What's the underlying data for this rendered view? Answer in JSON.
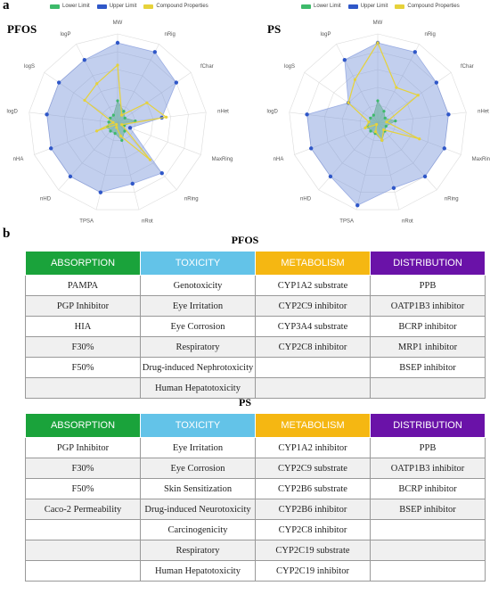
{
  "labels": {
    "panel_a": "a",
    "panel_b": "b"
  },
  "legend": {
    "items": [
      {
        "label": "Lower Limit",
        "color": "#3dba6a"
      },
      {
        "label": "Upper Limit",
        "color": "#2f57c8"
      },
      {
        "label": "Compound Properties",
        "color": "#e6d23a"
      }
    ]
  },
  "chart_data": [
    {
      "type": "radar",
      "title": "PFOS",
      "axes": [
        "MW",
        "nRig",
        "fChar",
        "nHet",
        "MaxRing",
        "nRing",
        "nRot",
        "TPSA",
        "nHD",
        "nHA",
        "logD",
        "logS",
        "logP"
      ],
      "series": [
        {
          "name": "Upper Limit",
          "values": [
            0.9,
            0.9,
            0.8,
            0.5,
            0.15,
            0.75,
            0.7,
            0.8,
            0.8,
            0.8,
            0.8,
            0.8,
            0.8
          ]
        },
        {
          "name": "Lower Limit",
          "values": [
            0.25,
            0.15,
            0.1,
            0.2,
            0.08,
            0.12,
            0.2,
            0.12,
            0.12,
            0.12,
            0.1,
            0.1,
            0.1
          ]
        },
        {
          "name": "Compound Properties",
          "values": [
            0.65,
            0.1,
            0.4,
            0.55,
            0.05,
            0.55,
            0.15,
            0.05,
            0.02,
            0.25,
            0.05,
            0.45,
            0.5
          ]
        }
      ]
    },
    {
      "type": "radar",
      "title": "PS",
      "axes": [
        "MW",
        "nRig",
        "fChar",
        "nHet",
        "MaxRing",
        "nRing",
        "nRot",
        "TPSA",
        "nHD",
        "nHA",
        "logD",
        "logS",
        "logP"
      ],
      "series": [
        {
          "name": "Upper Limit",
          "values": [
            0.9,
            0.9,
            0.8,
            0.8,
            0.8,
            0.8,
            0.75,
            0.95,
            0.8,
            0.8,
            0.8,
            0.4,
            0.8
          ]
        },
        {
          "name": "Lower Limit",
          "values": [
            0.25,
            0.15,
            0.1,
            0.2,
            0.1,
            0.12,
            0.2,
            0.12,
            0.12,
            0.12,
            0.1,
            0.1,
            0.1
          ]
        },
        {
          "name": "Compound Properties",
          "values": [
            0.9,
            0.45,
            0.55,
            0.1,
            0.5,
            0.1,
            0.2,
            0.1,
            0.02,
            0.15,
            0.1,
            0.4,
            0.55
          ]
        }
      ]
    }
  ],
  "tables": [
    {
      "title": "PFOS",
      "headers": [
        "ABSORPTION",
        "TOXICITY",
        "METABOLISM",
        "DISTRIBUTION"
      ],
      "rows": [
        [
          "PAMPA",
          "Genotoxicity",
          "CYP1A2 substrate",
          "PPB"
        ],
        [
          "PGP Inhibitor",
          "Eye Irritation",
          "CYP2C9 inhibitor",
          "OATP1B3 inhibitor"
        ],
        [
          "HIA",
          "Eye Corrosion",
          "CYP3A4 substrate",
          "BCRP inhibitor"
        ],
        [
          "F30%",
          "Respiratory",
          "CYP2C8 inhibitor",
          "MRP1 inhibitor"
        ],
        [
          "F50%",
          "Drug-induced Nephrotoxicity",
          "",
          "BSEP inhibitor"
        ],
        [
          "",
          "Human Hepatotoxicity",
          "",
          ""
        ]
      ]
    },
    {
      "title": "PS",
      "headers": [
        "ABSORPTION",
        "TOXICITY",
        "METABOLISM",
        "DISTRIBUTION"
      ],
      "rows": [
        [
          "PGP Inhibitor",
          "Eye Irritation",
          "CYP1A2 inhibitor",
          "PPB"
        ],
        [
          "F30%",
          "Eye Corrosion",
          "CYP2C9 substrate",
          "OATP1B3 inhibitor"
        ],
        [
          "F50%",
          "Skin Sensitization",
          "CYP2B6 substrate",
          "BCRP inhibitor"
        ],
        [
          "Caco-2 Permeability",
          "Drug-induced Neurotoxicity",
          "CYP2B6 inhibitor",
          "BSEP inhibitor"
        ],
        [
          "",
          "Carcinogenicity",
          "CYP2C8 inhibitor",
          ""
        ],
        [
          "",
          "Respiratory",
          "CYP2C19 substrate",
          ""
        ],
        [
          "",
          "Human Hepatotoxicity",
          "CYP2C19 inhibitor",
          ""
        ]
      ]
    }
  ]
}
